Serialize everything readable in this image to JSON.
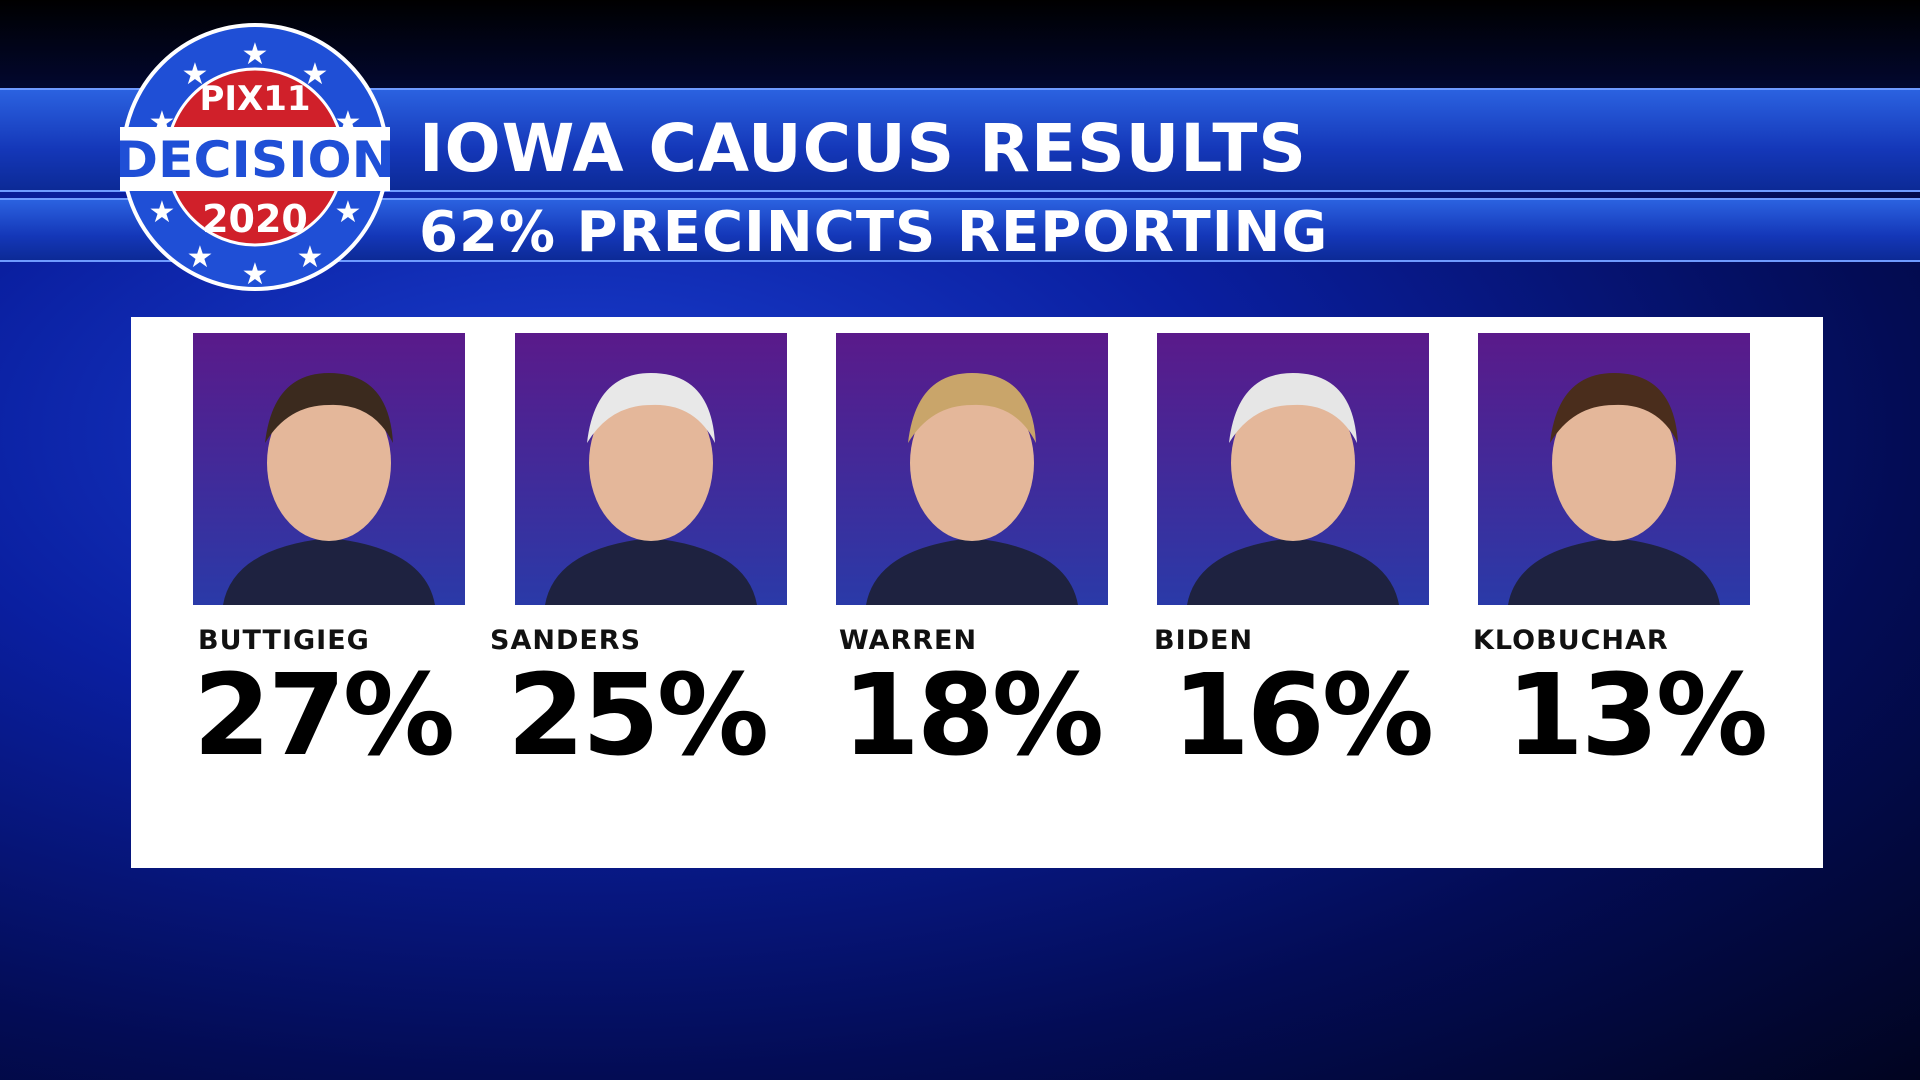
{
  "logo": {
    "brand": "PIX11",
    "line1": "DECISION",
    "line2": "2020"
  },
  "header": {
    "title": "IOWA CAUCUS RESULTS",
    "subtitle": "62% PRECINCTS REPORTING"
  },
  "candidates": [
    {
      "name": "BUTTIGIEG",
      "share": "27%"
    },
    {
      "name": "SANDERS",
      "share": "25%"
    },
    {
      "name": "WARREN",
      "share": "18%"
    },
    {
      "name": "BIDEN",
      "share": "16%"
    },
    {
      "name": "KLOBUCHAR",
      "share": "13%"
    }
  ]
}
